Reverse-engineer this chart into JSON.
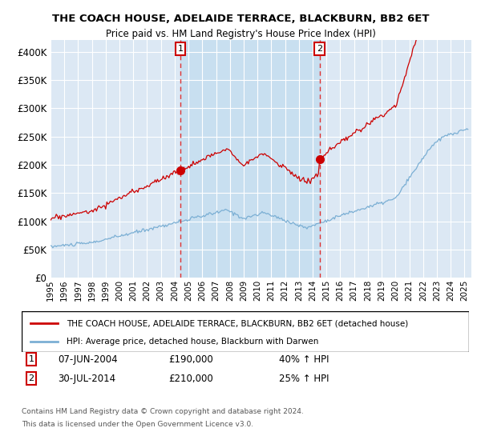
{
  "title": "THE COACH HOUSE, ADELAIDE TERRACE, BLACKBURN, BB2 6ET",
  "subtitle": "Price paid vs. HM Land Registry's House Price Index (HPI)",
  "hpi_color": "#7bafd4",
  "property_color": "#cc0000",
  "shade_color": "#c8dff0",
  "transaction1_date": "07-JUN-2004",
  "transaction1_price": 190000,
  "transaction1_label": "40% ↑ HPI",
  "transaction2_date": "30-JUL-2014",
  "transaction2_price": 210000,
  "transaction2_label": "25% ↑ HPI",
  "legend_property": "THE COACH HOUSE, ADELAIDE TERRACE, BLACKBURN, BB2 6ET (detached house)",
  "legend_hpi": "HPI: Average price, detached house, Blackburn with Darwen",
  "footer1": "Contains HM Land Registry data © Crown copyright and database right 2024.",
  "footer2": "This data is licensed under the Open Government Licence v3.0.",
  "ylim": [
    0,
    420000
  ],
  "yticks": [
    0,
    50000,
    100000,
    150000,
    200000,
    250000,
    300000,
    350000,
    400000
  ],
  "background_color": "#e8f0f8",
  "plot_background": "#dce8f4",
  "xlim_start": 1995,
  "xlim_end": 2025.5
}
